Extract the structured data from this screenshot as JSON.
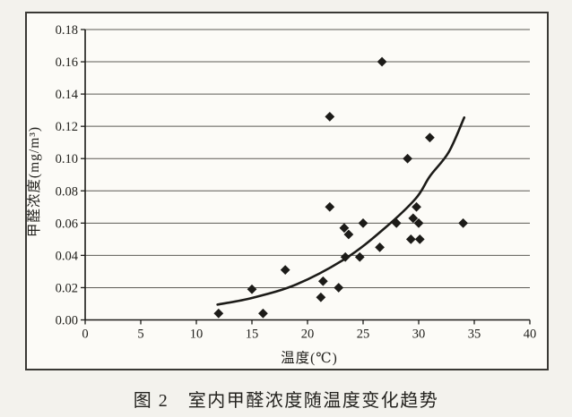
{
  "figure": {
    "caption": "图 2　室内甲醛浓度随温度变化趋势"
  },
  "chart_data": {
    "type": "scatter",
    "title": "",
    "xlabel": "温度(℃)",
    "ylabel": "甲醛浓度(mg/m³)",
    "xlim": [
      0,
      40
    ],
    "ylim": [
      0,
      0.18
    ],
    "x_ticks": [
      "0",
      "5",
      "10",
      "15",
      "20",
      "25",
      "30",
      "35",
      "40"
    ],
    "y_ticks": [
      "0.00",
      "0.02",
      "0.04",
      "0.06",
      "0.08",
      "0.10",
      "0.12",
      "0.14",
      "0.16",
      "0.18"
    ],
    "grid": "horizontal",
    "legend": "none",
    "series": [
      {
        "marker": "diamond",
        "color": "#1c1b18",
        "points": [
          [
            12,
            0.004
          ],
          [
            15,
            0.019
          ],
          [
            16,
            0.004
          ],
          [
            18,
            0.031
          ],
          [
            21.2,
            0.014
          ],
          [
            21.4,
            0.024
          ],
          [
            22.8,
            0.02
          ],
          [
            22,
            0.07
          ],
          [
            22,
            0.126
          ],
          [
            23.3,
            0.057
          ],
          [
            23.7,
            0.053
          ],
          [
            23.4,
            0.039
          ],
          [
            24.7,
            0.039
          ],
          [
            25,
            0.06
          ],
          [
            26.5,
            0.045
          ],
          [
            26.7,
            0.16
          ],
          [
            28,
            0.06
          ],
          [
            29,
            0.1
          ],
          [
            29.3,
            0.05
          ],
          [
            30.1,
            0.05
          ],
          [
            29.5,
            0.063
          ],
          [
            30,
            0.06
          ],
          [
            29.8,
            0.07
          ],
          [
            31,
            0.113
          ],
          [
            34,
            0.06
          ]
        ]
      }
    ],
    "trend": {
      "type": "smooth-exponential",
      "color": "#1c1b18",
      "points": [
        [
          11.9,
          0.0095
        ],
        [
          15,
          0.0136
        ],
        [
          19,
          0.022
        ],
        [
          23.4,
          0.038
        ],
        [
          26.8,
          0.056
        ],
        [
          29.7,
          0.075
        ],
        [
          31,
          0.089
        ],
        [
          32.7,
          0.104
        ],
        [
          34.1,
          0.1255
        ]
      ]
    },
    "colors": {
      "marker": "#1c1b18",
      "grid": "#5d5b55",
      "axis": "#1c1b18",
      "paper": "#f3f2ed",
      "plot_bg": "#fcfbf7",
      "frame": "#3a3935"
    }
  }
}
